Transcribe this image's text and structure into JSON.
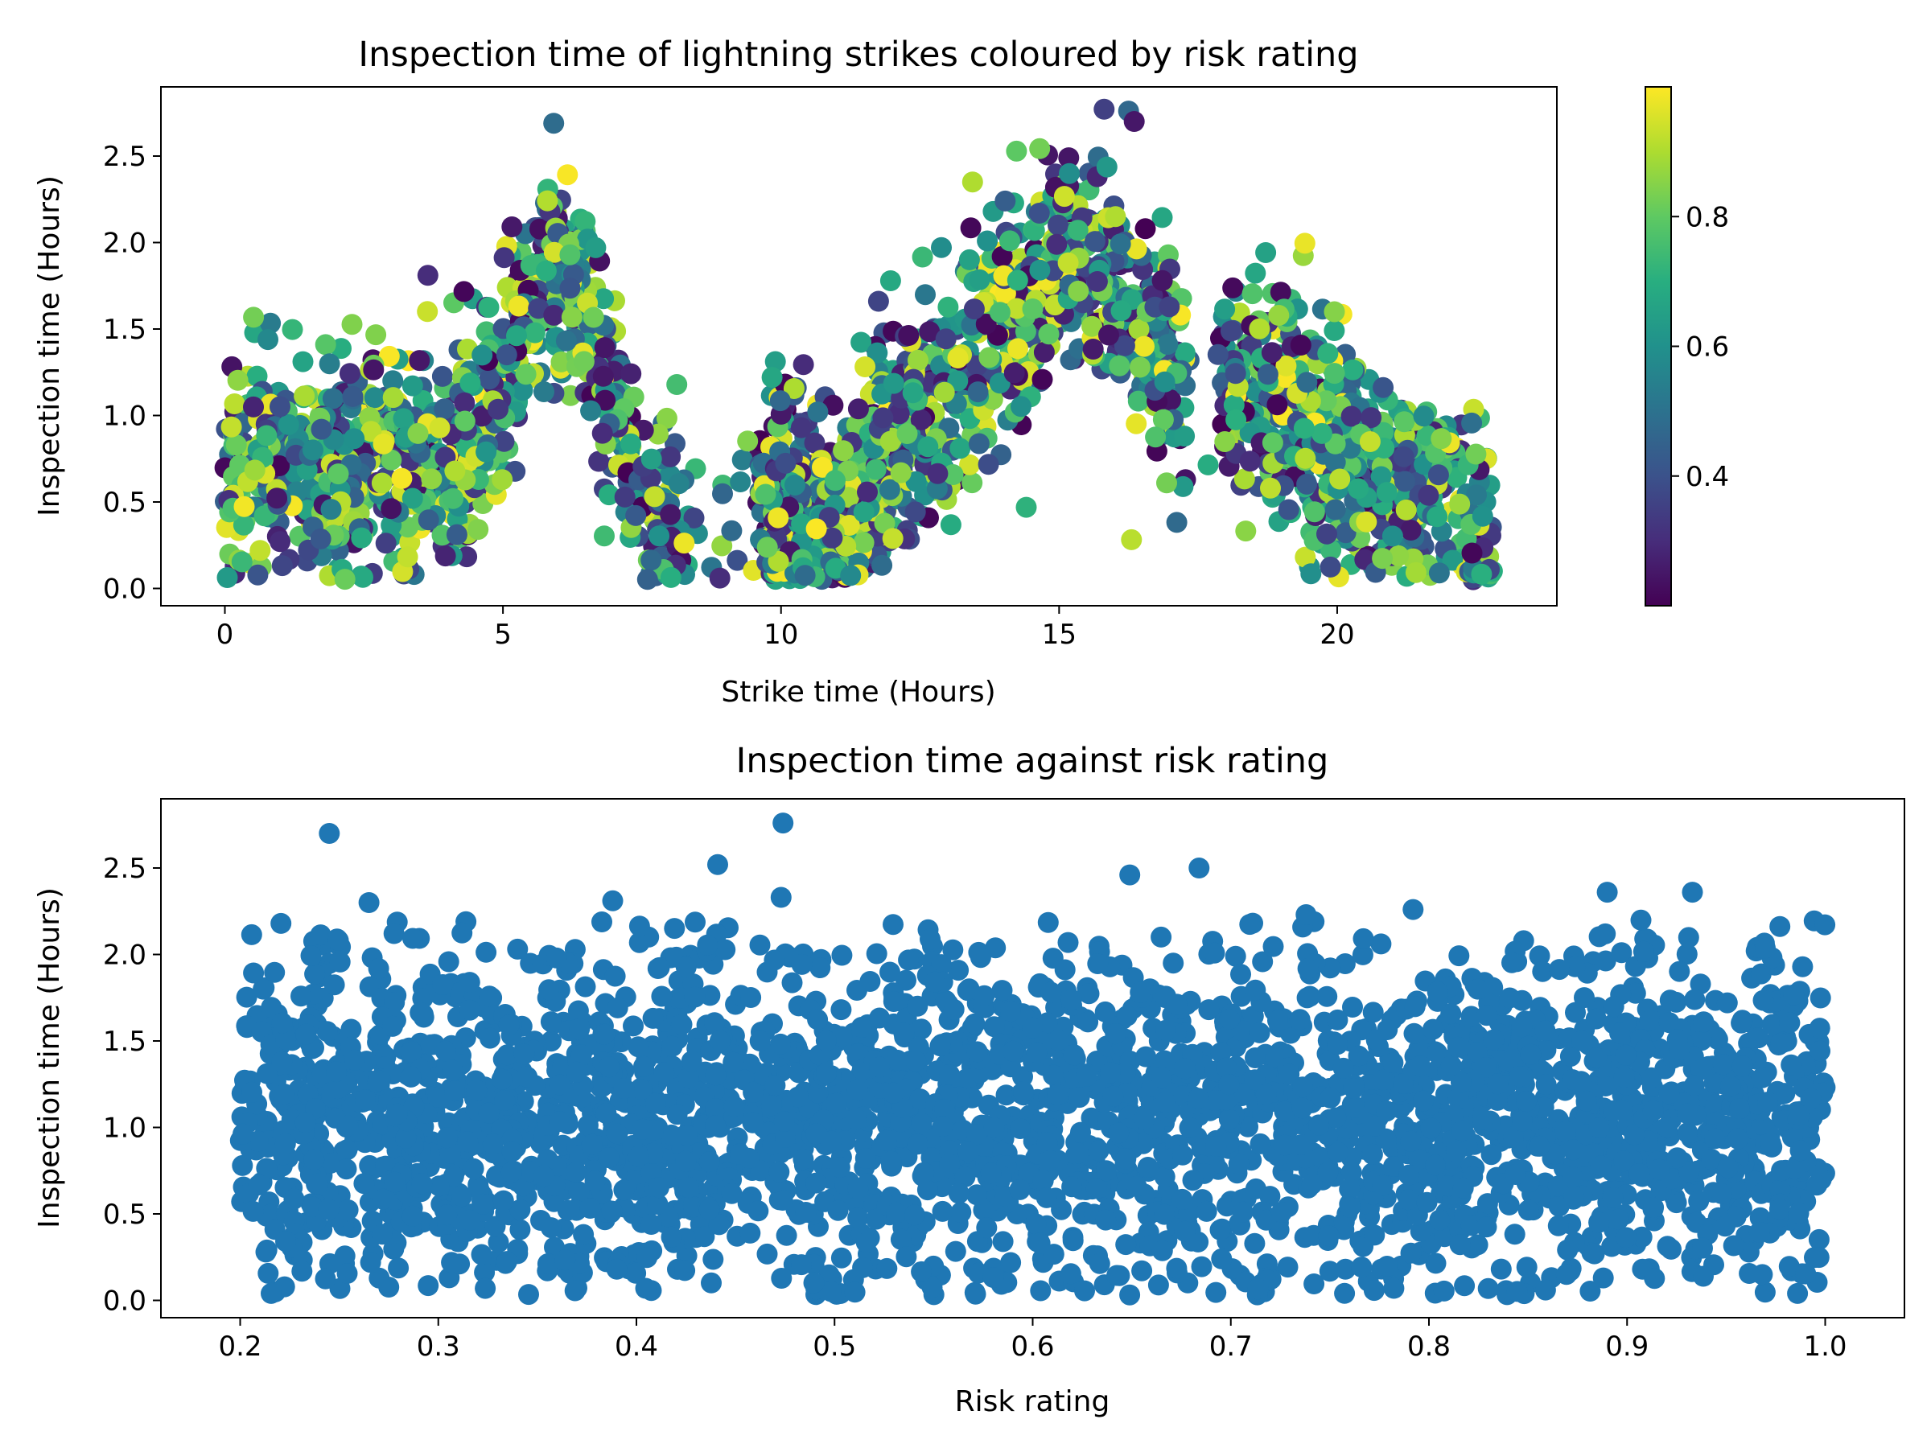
{
  "chart_data": [
    {
      "type": "scatter",
      "title": "Inspection time of lightning strikes coloured by risk rating",
      "xlabel": "Strike time (Hours)",
      "ylabel": "Inspection time (Hours)",
      "xlim": [
        -1.15,
        23.95
      ],
      "ylim": [
        -0.1,
        2.9
      ],
      "xticks": [
        0,
        5,
        10,
        15,
        20
      ],
      "xtick_labels": [
        "0",
        "5",
        "10",
        "15",
        "20"
      ],
      "yticks": [
        0.0,
        0.5,
        1.0,
        1.5,
        2.0,
        2.5
      ],
      "ytick_labels": [
        "0.0",
        "0.5",
        "1.0",
        "1.5",
        "2.0",
        "2.5"
      ],
      "grid": false,
      "colormap": "viridis",
      "color_by": "Risk rating",
      "colorbar": {
        "range": [
          0.2,
          1.0
        ],
        "ticks": [
          0.4,
          0.6,
          0.8
        ],
        "tick_labels": [
          "0.4",
          "0.6",
          "0.8"
        ]
      },
      "trend_points": [
        {
          "x": 0.0,
          "y": 0.4
        },
        {
          "x": 0.5,
          "y": 0.85
        },
        {
          "x": 1.0,
          "y": 0.7
        },
        {
          "x": 2.0,
          "y": 0.75
        },
        {
          "x": 3.0,
          "y": 0.7
        },
        {
          "x": 4.0,
          "y": 0.75
        },
        {
          "x": 5.0,
          "y": 1.1
        },
        {
          "x": 5.8,
          "y": 1.9
        },
        {
          "x": 6.5,
          "y": 1.6
        },
        {
          "x": 7.0,
          "y": 1.0
        },
        {
          "x": 7.5,
          "y": 0.5
        },
        {
          "x": 8.0,
          "y": 0.3
        },
        {
          "x": 9.0,
          "y": 0.4
        },
        {
          "x": 10.0,
          "y": 0.5
        },
        {
          "x": 11.0,
          "y": 0.45
        },
        {
          "x": 12.0,
          "y": 0.8
        },
        {
          "x": 13.0,
          "y": 1.1
        },
        {
          "x": 14.0,
          "y": 1.5
        },
        {
          "x": 15.0,
          "y": 1.9
        },
        {
          "x": 16.0,
          "y": 1.75
        },
        {
          "x": 17.0,
          "y": 1.3
        },
        {
          "x": 18.0,
          "y": 1.2
        },
        {
          "x": 19.0,
          "y": 1.1
        },
        {
          "x": 20.0,
          "y": 0.85
        },
        {
          "x": 21.0,
          "y": 0.65
        },
        {
          "x": 22.0,
          "y": 0.55
        },
        {
          "x": 22.8,
          "y": 0.3
        }
      ],
      "outliers": [
        {
          "x": 3.65,
          "y": 1.81,
          "risk": 0.3
        },
        {
          "x": 16.25,
          "y": 2.76,
          "risk": 0.47
        },
        {
          "x": 16.35,
          "y": 2.7,
          "risk": 0.25
        },
        {
          "x": 16.55,
          "y": 2.08,
          "risk": 0.2
        },
        {
          "x": 18.8,
          "y": 0.58,
          "risk": 0.92
        },
        {
          "x": 8.9,
          "y": 0.06,
          "risk": 0.3
        },
        {
          "x": 19.95,
          "y": 1.6,
          "risk": 0.85
        }
      ],
      "n_points": 2600
    },
    {
      "type": "scatter",
      "title": "Inspection time against risk rating",
      "xlabel": "Risk rating",
      "ylabel": "Inspection time (Hours)",
      "xlim": [
        0.16,
        1.04
      ],
      "ylim": [
        -0.1,
        2.9
      ],
      "xticks": [
        0.2,
        0.3,
        0.4,
        0.5,
        0.6,
        0.7,
        0.8,
        0.9,
        1.0
      ],
      "xtick_labels": [
        "0.2",
        "0.3",
        "0.4",
        "0.5",
        "0.6",
        "0.7",
        "0.8",
        "0.9",
        "1.0"
      ],
      "yticks": [
        0.0,
        0.5,
        1.0,
        1.5,
        2.0,
        2.5
      ],
      "ytick_labels": [
        "0.0",
        "0.5",
        "1.0",
        "1.5",
        "2.0",
        "2.5"
      ],
      "grid": false,
      "marker_color": "#1f77b4",
      "x_range": [
        0.2,
        1.0
      ],
      "y_range": [
        0.03,
        2.2
      ],
      "outliers": [
        {
          "x": 0.245,
          "y": 2.7
        },
        {
          "x": 0.474,
          "y": 2.76
        },
        {
          "x": 0.441,
          "y": 2.52
        },
        {
          "x": 0.684,
          "y": 2.5
        },
        {
          "x": 0.649,
          "y": 2.46
        },
        {
          "x": 0.473,
          "y": 2.33
        },
        {
          "x": 0.265,
          "y": 2.3
        },
        {
          "x": 0.388,
          "y": 2.31
        },
        {
          "x": 0.89,
          "y": 2.36
        },
        {
          "x": 0.933,
          "y": 2.36
        },
        {
          "x": 0.792,
          "y": 2.26
        },
        {
          "x": 0.738,
          "y": 2.23
        }
      ],
      "n_points": 3000
    }
  ]
}
